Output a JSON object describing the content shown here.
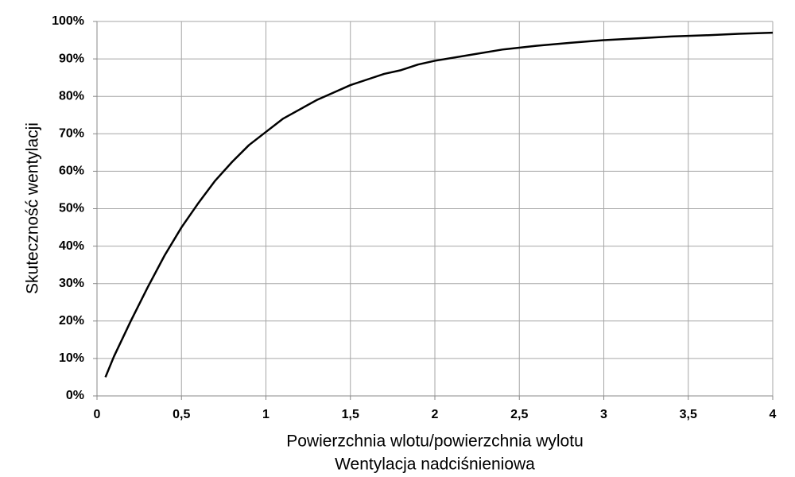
{
  "chart_data": {
    "type": "line",
    "ylabel": "Skuteczność wentylacji",
    "xlabel": [
      "Powierzchnia wlotu/powierzchnia wylotu",
      "Wentylacja nadciśnieniowa"
    ],
    "x": [
      0.05,
      0.1,
      0.2,
      0.3,
      0.4,
      0.5,
      0.6,
      0.7,
      0.8,
      0.9,
      1.0,
      1.1,
      1.2,
      1.3,
      1.4,
      1.5,
      1.6,
      1.7,
      1.8,
      1.9,
      2.0,
      2.2,
      2.4,
      2.6,
      2.8,
      3.0,
      3.2,
      3.4,
      3.6,
      3.8,
      4.0
    ],
    "values": [
      5,
      10.5,
      20,
      29,
      37.5,
      45,
      51.5,
      57.5,
      62.5,
      67,
      70.5,
      74,
      76.5,
      79,
      81,
      83,
      84.5,
      86,
      87,
      88.5,
      89.5,
      91,
      92.5,
      93.5,
      94.3,
      95,
      95.5,
      96,
      96.3,
      96.7,
      97
    ],
    "color": "#000000",
    "xlim": [
      0,
      4
    ],
    "ylim": [
      0,
      100
    ],
    "xticks": [
      0,
      {
        "value": 0.5,
        "label": "0,5"
      },
      1,
      {
        "value": 1.5,
        "label": "1,5"
      },
      2,
      {
        "value": 2.5,
        "label": "2,5"
      },
      3,
      {
        "value": 3.5,
        "label": "3,5"
      },
      4
    ],
    "yticks": [
      {
        "value": 0,
        "label": "0%"
      },
      {
        "value": 10,
        "label": "10%"
      },
      {
        "value": 20,
        "label": "20%"
      },
      {
        "value": 30,
        "label": "30%"
      },
      {
        "value": 40,
        "label": "40%"
      },
      {
        "value": 50,
        "label": "50%"
      },
      {
        "value": 60,
        "label": "60%"
      },
      {
        "value": 70,
        "label": "70%"
      },
      {
        "value": 80,
        "label": "80%"
      },
      {
        "value": 90,
        "label": "90%"
      },
      {
        "value": 100,
        "label": "100%"
      }
    ],
    "grid": true
  }
}
